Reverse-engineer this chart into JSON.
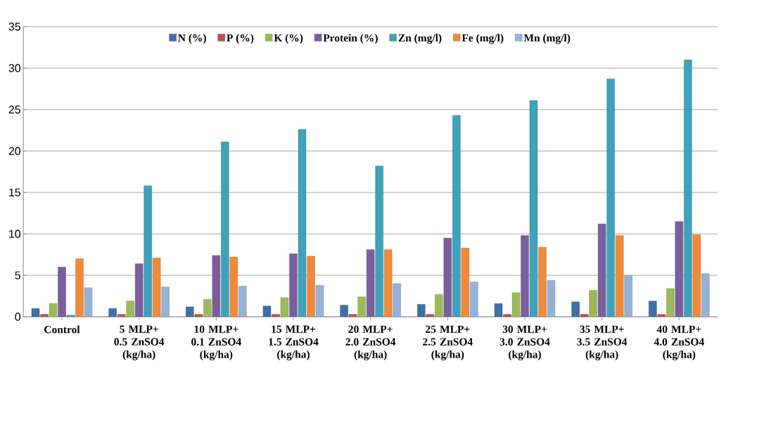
{
  "chart_data": {
    "type": "bar",
    "categories": [
      "Control",
      "5 MLP+ 0.5 ZnSO4 (kg/ha)",
      "10 MLP+ 0.1 ZnSO4 (kg/ha)",
      "15 MLP+ 1.5 ZnSO4 (kg/ha)",
      "20 MLP+ 2.0 ZnSO4 (kg/ha)",
      "25 MLP+ 2.5 ZnSO4 (kg/ha)",
      "30 MLP+ 3.0 ZnSO4 (kg/ha)",
      "35 MLP+ 3.5 ZnSO4 (kg/ha)",
      "40 MLP+ 4.0 ZnSO4 (kg/ha)"
    ],
    "series": [
      {
        "name": "N (%)",
        "color": "#3f6fa8",
        "values": [
          1.0,
          1.0,
          1.2,
          1.3,
          1.4,
          1.5,
          1.6,
          1.8,
          1.9
        ]
      },
      {
        "name": "P (%)",
        "color": "#c0504d",
        "values": [
          0.3,
          0.3,
          0.3,
          0.3,
          0.3,
          0.3,
          0.3,
          0.3,
          0.3
        ]
      },
      {
        "name": "K (%)",
        "color": "#9bbb59",
        "values": [
          1.6,
          1.9,
          2.1,
          2.3,
          2.4,
          2.7,
          2.9,
          3.2,
          3.4
        ]
      },
      {
        "name": "Protein (%)",
        "color": "#7b5e9e",
        "values": [
          6.0,
          6.4,
          7.4,
          7.6,
          8.1,
          9.5,
          9.8,
          11.2,
          11.5
        ]
      },
      {
        "name": "Zn (mg/l)",
        "color": "#3fa2bb",
        "values": [
          0.2,
          15.8,
          21.1,
          22.6,
          18.2,
          24.3,
          26.1,
          28.7,
          31.0
        ]
      },
      {
        "name": "Fe (mg/l)",
        "color": "#f08a3a",
        "values": [
          7.0,
          7.1,
          7.2,
          7.3,
          8.1,
          8.3,
          8.4,
          9.8,
          9.9
        ]
      },
      {
        "name": "Mn (mg/l)",
        "color": "#95b3d7",
        "values": [
          3.5,
          3.6,
          3.7,
          3.8,
          4.0,
          4.2,
          4.4,
          5.0,
          5.2
        ]
      }
    ],
    "ylim": [
      0,
      35
    ],
    "yticks": [
      0,
      5,
      10,
      15,
      20,
      25,
      30,
      35
    ],
    "grid": "y",
    "legend": "top"
  }
}
